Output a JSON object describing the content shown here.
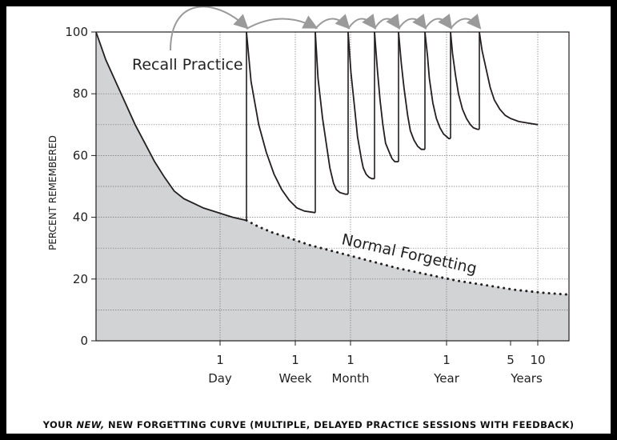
{
  "chart_data": {
    "type": "line",
    "ylabel": "PERCENT REMEMBERED",
    "ylim": [
      0,
      100
    ],
    "yticks": [
      0,
      20,
      40,
      60,
      80,
      100
    ],
    "x_tick_groups": [
      {
        "value": "1",
        "unit": "Day"
      },
      {
        "value": "1",
        "unit": "Week"
      },
      {
        "value": "1",
        "unit": "Month"
      },
      {
        "value": "1",
        "unit": "Year"
      },
      {
        "value": "5",
        "unit": ""
      },
      {
        "value": "10",
        "unit": "Years"
      }
    ],
    "annotations": {
      "recall": "Recall Practice",
      "forgetting": "Normal Forgetting"
    },
    "series": [
      {
        "name": "Normal Forgetting",
        "points": [
          [
            0,
            100
          ],
          [
            0.05,
            91
          ],
          [
            0.1,
            84
          ],
          [
            0.15,
            77
          ],
          [
            0.2,
            70
          ],
          [
            0.25,
            64
          ],
          [
            0.3,
            58
          ],
          [
            0.35,
            53
          ],
          [
            0.4,
            48.5
          ],
          [
            0.45,
            46
          ],
          [
            0.5,
            44.5
          ],
          [
            0.55,
            43
          ],
          [
            0.6,
            42
          ],
          [
            0.7,
            40
          ],
          [
            0.77,
            39
          ],
          [
            0.85,
            37
          ],
          [
            0.95,
            35
          ],
          [
            1.05,
            33.5
          ],
          [
            1.2,
            31
          ],
          [
            1.4,
            28.5
          ],
          [
            1.6,
            26
          ],
          [
            1.8,
            23.5
          ],
          [
            2.0,
            21.5
          ],
          [
            2.2,
            19.5
          ],
          [
            2.4,
            18
          ],
          [
            2.6,
            16.5
          ],
          [
            2.8,
            15.5
          ],
          [
            2.95,
            15
          ]
        ]
      },
      {
        "name": "Recall Practice",
        "curves": [
          [
            [
              0.77,
              100
            ],
            [
              0.8,
              84
            ],
            [
              0.85,
              70
            ],
            [
              0.9,
              61
            ],
            [
              0.95,
              54
            ],
            [
              1.0,
              49
            ],
            [
              1.05,
              45.5
            ],
            [
              1.1,
              43
            ],
            [
              1.15,
              42
            ],
            [
              1.22,
              41.5
            ]
          ],
          [
            [
              1.22,
              100
            ],
            [
              1.25,
              85
            ],
            [
              1.3,
              72
            ],
            [
              1.35,
              62
            ],
            [
              1.38,
              56
            ],
            [
              1.42,
              51
            ],
            [
              1.45,
              49
            ],
            [
              1.49,
              48
            ],
            [
              1.55,
              47.5
            ],
            [
              1.58,
              47.5
            ]
          ],
          [
            [
              1.58,
              100
            ],
            [
              1.61,
              87
            ],
            [
              1.65,
              75
            ],
            [
              1.68,
              66
            ],
            [
              1.72,
              59
            ],
            [
              1.74,
              56
            ],
            [
              1.77,
              54
            ],
            [
              1.8,
              53
            ],
            [
              1.83,
              52.5
            ],
            [
              1.86,
              52.5
            ]
          ],
          [
            [
              1.86,
              100
            ],
            [
              1.89,
              88
            ],
            [
              1.92,
              78
            ],
            [
              1.95,
              70
            ],
            [
              1.98,
              64
            ],
            [
              2.02,
              61
            ],
            [
              2.05,
              59
            ],
            [
              2.08,
              58
            ],
            [
              2.11,
              58
            ],
            [
              2.12,
              58
            ]
          ],
          [
            [
              2.12,
              100
            ],
            [
              2.15,
              90
            ],
            [
              2.18,
              82
            ],
            [
              2.22,
              73
            ],
            [
              2.25,
              68
            ],
            [
              2.29,
              65
            ],
            [
              2.33,
              63
            ],
            [
              2.37,
              62
            ],
            [
              2.4,
              62
            ],
            [
              2.41,
              62
            ]
          ],
          [
            [
              2.41,
              100
            ],
            [
              2.44,
              92
            ],
            [
              2.46,
              85
            ],
            [
              2.5,
              77
            ],
            [
              2.54,
              72
            ],
            [
              2.58,
              69
            ],
            [
              2.62,
              67
            ],
            [
              2.66,
              66
            ],
            [
              2.68,
              65.5
            ],
            [
              2.7,
              65.5
            ]
          ],
          [
            [
              2.7,
              100
            ],
            [
              2.72,
              93
            ],
            [
              2.75,
              86
            ],
            [
              2.78,
              80
            ],
            [
              2.82,
              75
            ],
            [
              2.86,
              72
            ],
            [
              2.9,
              70
            ],
            [
              2.93,
              69
            ],
            [
              2.97,
              68.5
            ],
            [
              2.99,
              68.5
            ]
          ],
          [
            [
              2.99,
              100
            ],
            [
              3.01,
              94
            ],
            [
              3.04,
              88
            ],
            [
              3.07,
              82
            ],
            [
              3.1,
              78
            ],
            [
              3.14,
              75
            ],
            [
              3.18,
              73
            ],
            [
              3.22,
              72
            ],
            [
              3.28,
              71
            ],
            [
              3.35,
              70.5
            ],
            [
              3.42,
              70
            ]
          ]
        ]
      }
    ]
  },
  "caption": {
    "part1": "YOUR ",
    "part2": "NEW,",
    "part3": " NEW FORGETTING CURVE (MULTIPLE, DELAYED PRACTICE SESSIONS WITH FEEDBACK)"
  }
}
